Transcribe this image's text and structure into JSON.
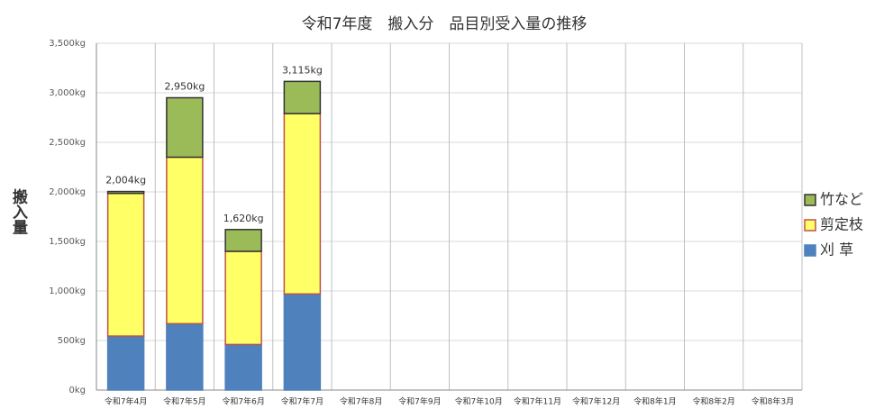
{
  "chart_data": {
    "type": "stacked_bar",
    "title": "令和7年度　搬入分　品目別受入量の推移",
    "y_label": "搬入量",
    "categories": [
      "令和7年4月",
      "令和7年5月",
      "令和7年6月",
      "令和7年7月",
      "令和7年8月",
      "令和7年9月",
      "令和7年10月",
      "令和7年11月",
      "令和7年12月",
      "令和8年1月",
      "令和8年2月",
      "令和8年3月"
    ],
    "series": [
      {
        "name": "刈 草",
        "color": "#4f81bd",
        "edgecolor": "#4f81bd",
        "values": [
          545,
          670,
          460,
          970,
          null,
          null,
          null,
          null,
          null,
          null,
          null,
          null
        ]
      },
      {
        "name": "剪定枝",
        "color": "#ffff66",
        "edgecolor": "#c0504d",
        "values": [
          1440,
          1680,
          940,
          1820,
          null,
          null,
          null,
          null,
          null,
          null,
          null,
          null
        ]
      },
      {
        "name": "竹など",
        "color": "#9bbb59",
        "edgecolor": "#333333",
        "values": [
          19,
          600,
          220,
          325,
          null,
          null,
          null,
          null,
          null,
          null,
          null,
          null
        ]
      }
    ],
    "totals": [
      2004,
      2950,
      1620,
      3115,
      null,
      null,
      null,
      null,
      null,
      null,
      null,
      null
    ],
    "total_labels": [
      "2,004kg",
      "2,950kg",
      "1,620kg",
      "3,115kg",
      null,
      null,
      null,
      null,
      null,
      null,
      null,
      null
    ],
    "ylim": [
      0,
      3500
    ],
    "yticks": [
      {
        "value": 0,
        "label": "0kg"
      },
      {
        "value": 500,
        "label": "500kg"
      },
      {
        "value": 1000,
        "label": "1,000kg"
      },
      {
        "value": 1500,
        "label": "1,500kg"
      },
      {
        "value": 2000,
        "label": "2,000kg"
      },
      {
        "value": 2500,
        "label": "2,500kg"
      },
      {
        "value": 3000,
        "label": "3,000kg"
      },
      {
        "value": 3500,
        "label": "3,500kg"
      }
    ],
    "grid": true,
    "legend": "right"
  }
}
